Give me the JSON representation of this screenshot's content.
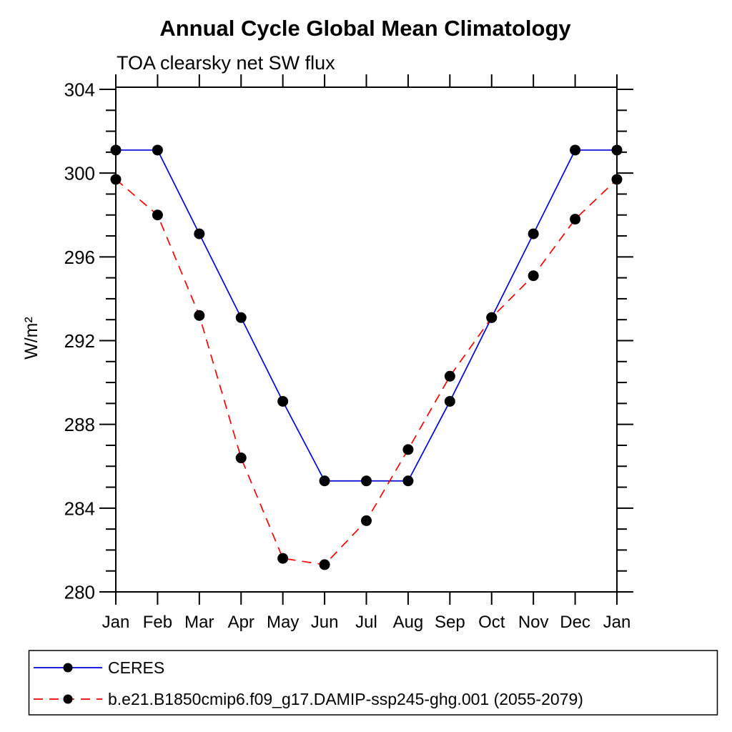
{
  "chart_data": {
    "type": "line",
    "title": "Annual Cycle Global Mean Climatology",
    "subtitle": "TOA clearsky net SW flux",
    "xlabel": "",
    "ylabel": "W/m²",
    "categories": [
      "Jan",
      "Feb",
      "Mar",
      "Apr",
      "May",
      "Jun",
      "Jul",
      "Aug",
      "Sep",
      "Oct",
      "Nov",
      "Dec",
      "Jan"
    ],
    "ylim": [
      280,
      304
    ],
    "ytick_major": [
      280,
      284,
      288,
      292,
      296,
      300,
      304
    ],
    "ytick_minor_step": 1,
    "grid": false,
    "legend_position": "bottom",
    "marker_color": "#000000",
    "series": [
      {
        "name": "CERES",
        "color": "#0000e0",
        "style": "solid",
        "marker": "circle",
        "values": [
          301.1,
          301.1,
          297.1,
          293.1,
          289.1,
          285.3,
          285.3,
          285.3,
          289.1,
          293.1,
          297.1,
          301.1,
          301.1
        ]
      },
      {
        "name": "b.e21.B1850cmip6.f09_g17.DAMIP-ssp245-ghg.001 (2055-2079)",
        "color": "#ff0000",
        "style": "dashed",
        "marker": "circle",
        "values": [
          299.7,
          298.0,
          293.2,
          286.4,
          281.6,
          281.3,
          283.4,
          286.8,
          290.3,
          293.1,
          295.1,
          297.8,
          299.7
        ]
      }
    ]
  }
}
